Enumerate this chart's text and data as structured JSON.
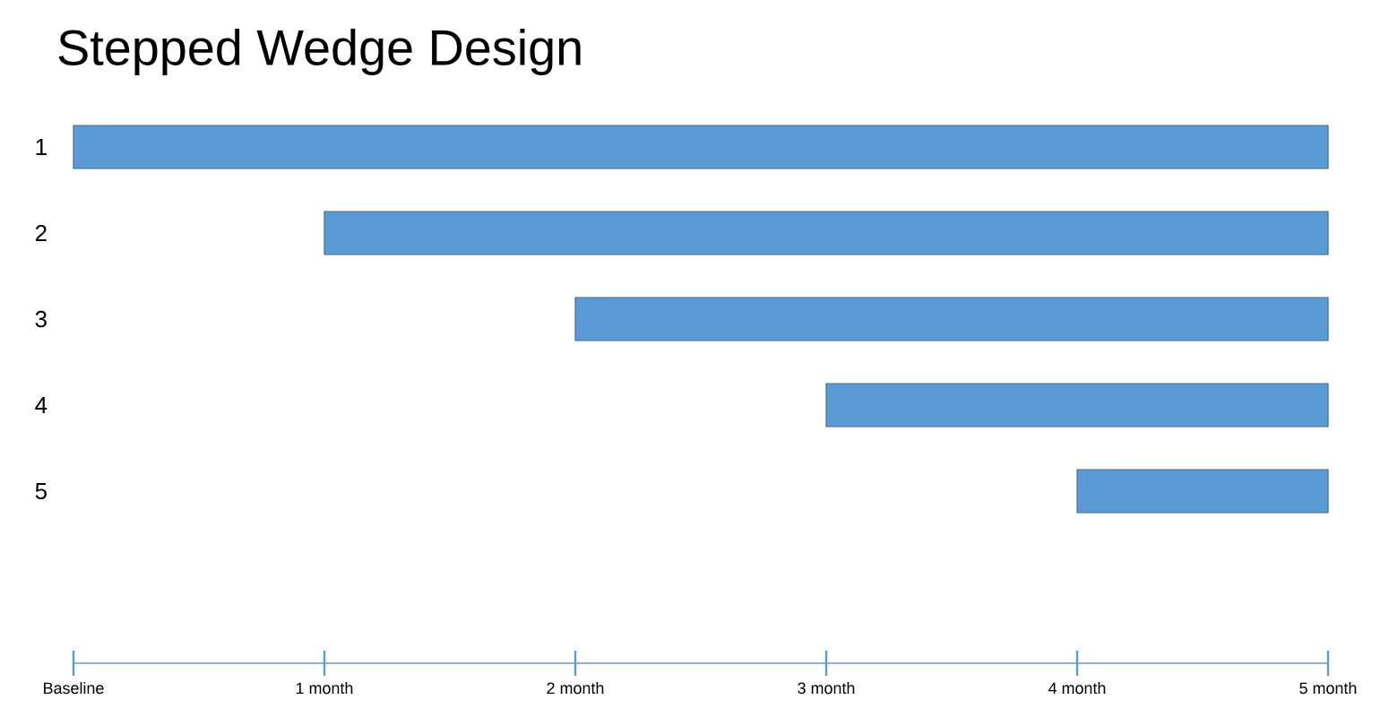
{
  "chart_data": {
    "type": "bar",
    "orientation": "horizontal",
    "title": "Stepped Wedge Design",
    "categories": [
      "1",
      "2",
      "3",
      "4",
      "5"
    ],
    "base": [
      0,
      1,
      2,
      3,
      4
    ],
    "values": [
      5,
      4,
      3,
      2,
      1
    ],
    "color": "#5b9bd5",
    "xlim": [
      0,
      5
    ],
    "xticks": [
      {
        "value": 0,
        "label": "Baseline"
      },
      {
        "value": 1,
        "label": "1 month"
      },
      {
        "value": 2,
        "label": "2 month"
      },
      {
        "value": 3,
        "label": "3 month"
      },
      {
        "value": 4,
        "label": "4 month"
      },
      {
        "value": 5,
        "label": "5 month"
      }
    ]
  }
}
